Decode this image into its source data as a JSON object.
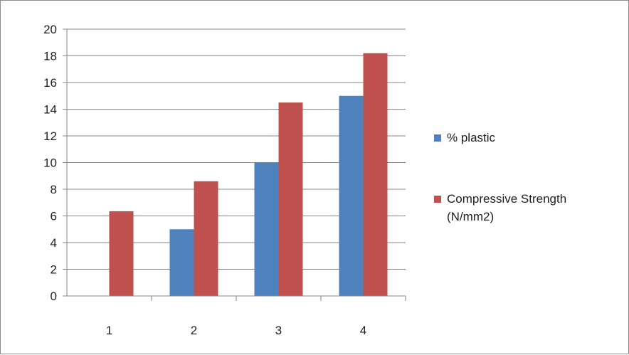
{
  "chart_data": {
    "type": "bar",
    "title": "",
    "xlabel": "",
    "ylabel": "",
    "categories": [
      "1",
      "2",
      "3",
      "4"
    ],
    "series": [
      {
        "name": "% plastic",
        "color": "#4f81bd",
        "values": [
          0,
          5,
          10,
          15
        ]
      },
      {
        "name": "Compressive Strength (N/mm2)",
        "name_lines": [
          "Compressive Strength",
          "(N/mm2)"
        ],
        "color": "#c0504d",
        "values": [
          6.35,
          8.6,
          14.5,
          18.2
        ]
      }
    ],
    "ylim": [
      0,
      20
    ],
    "yticks": [
      "0",
      "2",
      "4",
      "6",
      "8",
      "10",
      "12",
      "14",
      "16",
      "18",
      "20"
    ],
    "grid": true,
    "legend_position": "right"
  }
}
